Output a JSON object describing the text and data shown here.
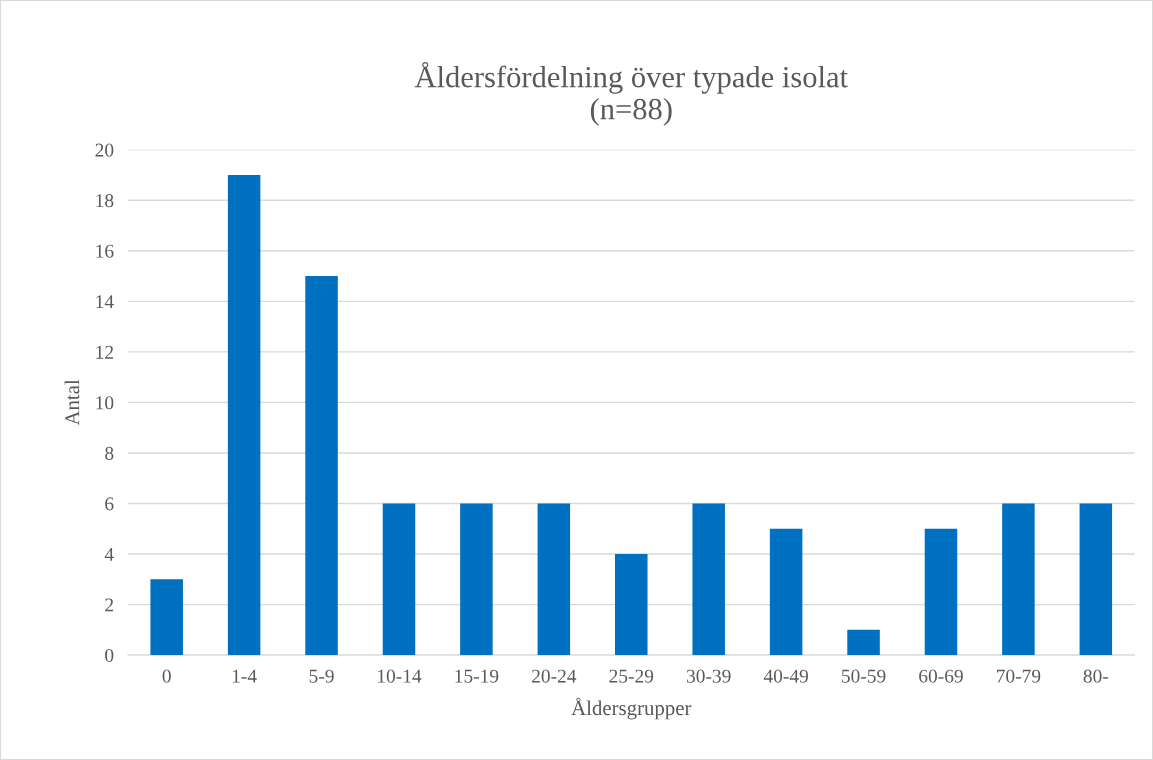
{
  "chart_data": {
    "type": "bar",
    "title": "Åldersfördelning över typade isolat\n(n=88)",
    "xlabel": "Åldersgrupper",
    "ylabel": "Antal",
    "categories": [
      "0",
      "1-4",
      "5-9",
      "10-14",
      "15-19",
      "20-24",
      "25-29",
      "30-39",
      "40-49",
      "50-59",
      "60-69",
      "70-79",
      "80-"
    ],
    "values": [
      3,
      19,
      15,
      6,
      6,
      6,
      4,
      6,
      5,
      1,
      5,
      6,
      6
    ],
    "color": "#0070c0",
    "ylim": [
      0,
      20
    ],
    "yticks": [
      0,
      2,
      4,
      6,
      8,
      10,
      12,
      14,
      16,
      18,
      20
    ],
    "grid": "y"
  }
}
